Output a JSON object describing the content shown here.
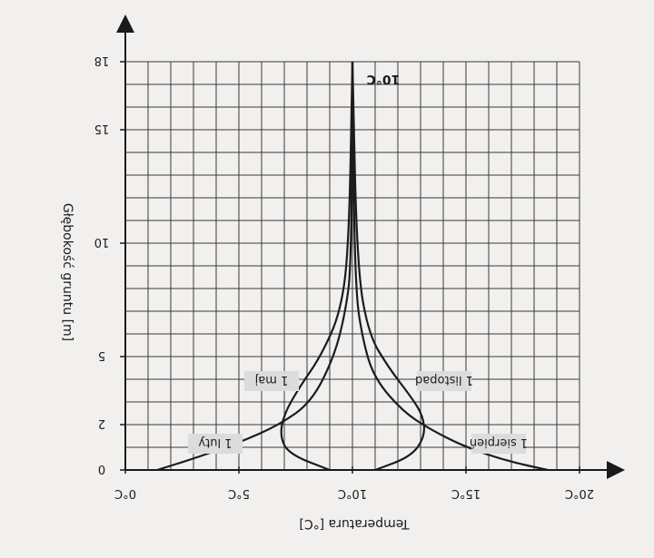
{
  "chart_data": {
    "type": "line",
    "title": "",
    "xlabel": "Temperatura [°C]",
    "ylabel": "Głębokość gruntu [m]",
    "xlim": [
      0,
      20
    ],
    "ylim": [
      0,
      18
    ],
    "y_inverted": true,
    "x_ticks": [
      "0°C",
      "5°C",
      "10°C",
      "15°C",
      "20°C"
    ],
    "y_ticks": [
      0,
      2,
      5,
      10,
      15,
      18
    ],
    "grid": true,
    "annotation": "10°C",
    "series": [
      {
        "name": "1 luty",
        "x": [
          1.4,
          3.0,
          5.0,
          6.8,
          8.2,
          9.2,
          9.7,
          9.95,
          10.0
        ],
        "y": [
          0,
          0.5,
          1.2,
          2.0,
          3.0,
          5.0,
          7.0,
          9.0,
          18
        ]
      },
      {
        "name": "1 maj",
        "x": [
          9.0,
          7.2,
          6.8,
          7.0,
          7.7,
          8.6,
          9.5,
          9.85,
          10.0
        ],
        "y": [
          0,
          0.7,
          1.5,
          2.5,
          3.7,
          5.0,
          7.0,
          10.0,
          18
        ]
      },
      {
        "name": "1 sierpień",
        "x": [
          18.6,
          16.8,
          15.0,
          13.4,
          12.2,
          11.0,
          10.5,
          10.1,
          10.0
        ],
        "y": [
          0,
          0.4,
          1.0,
          1.8,
          2.6,
          4.0,
          5.5,
          8.0,
          18
        ]
      },
      {
        "name": "1 listopad",
        "x": [
          11.0,
          12.6,
          13.2,
          13.1,
          12.6,
          11.6,
          10.7,
          10.2,
          10.0
        ],
        "y": [
          0,
          0.6,
          1.5,
          2.4,
          3.2,
          4.5,
          6.0,
          9.0,
          18
        ]
      }
    ]
  }
}
